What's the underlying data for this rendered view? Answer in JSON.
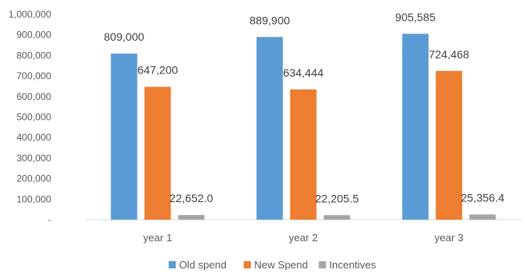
{
  "chart_data": {
    "type": "bar",
    "categories": [
      "year 1",
      "year 2",
      "year 3"
    ],
    "series": [
      {
        "name": "Old spend",
        "values": [
          809000,
          889900,
          905585
        ],
        "labels": [
          "809,000",
          "889,900",
          "905,585"
        ],
        "color": "#5B9BD5"
      },
      {
        "name": "New Spend",
        "values": [
          647200,
          634444,
          724468
        ],
        "labels": [
          "647,200",
          "634,444",
          "724,468"
        ],
        "color": "#ED7D31"
      },
      {
        "name": "Incentives",
        "values": [
          22652.0,
          22205.5,
          25356.4
        ],
        "labels": [
          "22,652.0",
          "22,205.5",
          "25,356.4"
        ],
        "color": "#A5A5A5"
      }
    ],
    "ylim": [
      0,
      1000000
    ],
    "yticks": [
      0,
      100000,
      200000,
      300000,
      400000,
      500000,
      600000,
      700000,
      800000,
      900000,
      1000000
    ],
    "ytick_labels": [
      "-",
      "100,000",
      "200,000",
      "300,000",
      "400,000",
      "500,000",
      "600,000",
      "700,000",
      "800,000",
      "900,000",
      "1,000,000"
    ],
    "grid": false,
    "legend_position": "bottom"
  }
}
